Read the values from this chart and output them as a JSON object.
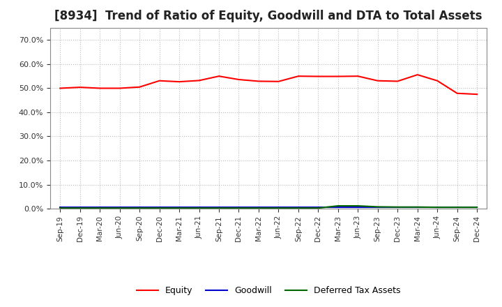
{
  "title": "[8934]  Trend of Ratio of Equity, Goodwill and DTA to Total Assets",
  "x_labels": [
    "Sep-19",
    "Dec-19",
    "Mar-20",
    "Jun-20",
    "Sep-20",
    "Dec-20",
    "Mar-21",
    "Jun-21",
    "Sep-21",
    "Dec-21",
    "Mar-22",
    "Jun-22",
    "Sep-22",
    "Dec-22",
    "Mar-23",
    "Jun-23",
    "Sep-23",
    "Dec-23",
    "Mar-24",
    "Jun-24",
    "Sep-24",
    "Dec-24"
  ],
  "equity": [
    0.499,
    0.503,
    0.499,
    0.499,
    0.504,
    0.53,
    0.526,
    0.531,
    0.549,
    0.535,
    0.528,
    0.527,
    0.549,
    0.548,
    0.548,
    0.549,
    0.53,
    0.528,
    0.555,
    0.53,
    0.478,
    0.474
  ],
  "goodwill": [
    0.007,
    0.007,
    0.007,
    0.007,
    0.007,
    0.007,
    0.007,
    0.007,
    0.007,
    0.007,
    0.007,
    0.007,
    0.007,
    0.007,
    0.007,
    0.007,
    0.007,
    0.007,
    0.007,
    0.007,
    0.007,
    0.007
  ],
  "dta": [
    0.003,
    0.003,
    0.003,
    0.003,
    0.003,
    0.003,
    0.003,
    0.003,
    0.003,
    0.003,
    0.003,
    0.003,
    0.003,
    0.003,
    0.012,
    0.012,
    0.008,
    0.007,
    0.007,
    0.006,
    0.006,
    0.006
  ],
  "equity_color": "#ff0000",
  "goodwill_color": "#0000cc",
  "dta_color": "#006600",
  "ylim": [
    0.0,
    0.75
  ],
  "yticks": [
    0.0,
    0.1,
    0.2,
    0.3,
    0.4,
    0.5,
    0.6,
    0.7
  ],
  "background_color": "#ffffff",
  "plot_bg_color": "#ffffff",
  "grid_color": "#bbbbbb",
  "title_fontsize": 12,
  "title_color": "#222222",
  "tick_color": "#333333",
  "legend_labels": [
    "Equity",
    "Goodwill",
    "Deferred Tax Assets"
  ],
  "line_width": 1.5
}
